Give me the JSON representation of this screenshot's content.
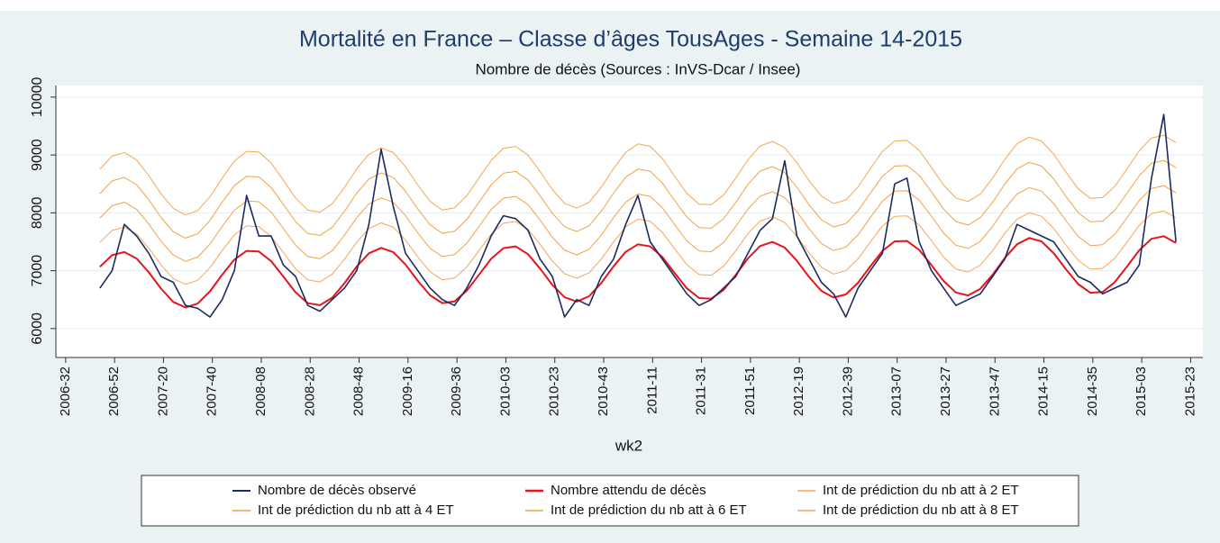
{
  "chart_data": {
    "type": "line",
    "title": "Mortalité en France – Classe d’âges  TousAges - Semaine 14-2015",
    "subtitle": "Nombre de décès (Sources : InVS-Dcar / Insee)",
    "x_label": "wk2",
    "grid": true,
    "legend": "bottom",
    "xlim": [
      -4,
      465
    ],
    "ylim": [
      5500,
      10200
    ],
    "yticks": [
      6000,
      7000,
      8000,
      9000,
      10000
    ],
    "xticks": [
      {
        "value": 0,
        "label": "2006-32"
      },
      {
        "value": 20,
        "label": "2006-52"
      },
      {
        "value": 40,
        "label": "2007-20"
      },
      {
        "value": 60,
        "label": "2007-40"
      },
      {
        "value": 80,
        "label": "2008-08"
      },
      {
        "value": 100,
        "label": "2008-28"
      },
      {
        "value": 120,
        "label": "2008-48"
      },
      {
        "value": 140,
        "label": "2009-16"
      },
      {
        "value": 160,
        "label": "2009-36"
      },
      {
        "value": 180,
        "label": "2010-03"
      },
      {
        "value": 200,
        "label": "2010-23"
      },
      {
        "value": 220,
        "label": "2010-43"
      },
      {
        "value": 240,
        "label": "2011-11"
      },
      {
        "value": 260,
        "label": "2011-31"
      },
      {
        "value": 280,
        "label": "2011-51"
      },
      {
        "value": 300,
        "label": "2012-19"
      },
      {
        "value": 320,
        "label": "2012-39"
      },
      {
        "value": 340,
        "label": "2013-07"
      },
      {
        "value": 360,
        "label": "2013-27"
      },
      {
        "value": 380,
        "label": "2013-47"
      },
      {
        "value": 400,
        "label": "2014-15"
      },
      {
        "value": 420,
        "label": "2014-35"
      },
      {
        "value": 440,
        "label": "2015-03"
      },
      {
        "value": 460,
        "label": "2015-23"
      }
    ],
    "x": [
      14,
      19,
      24,
      29,
      34,
      39,
      44,
      49,
      54,
      59,
      64,
      69,
      74,
      79,
      84,
      89,
      94,
      99,
      104,
      109,
      114,
      119,
      124,
      129,
      134,
      139,
      144,
      149,
      154,
      159,
      164,
      169,
      174,
      179,
      184,
      189,
      194,
      199,
      204,
      209,
      214,
      219,
      224,
      229,
      234,
      239,
      244,
      249,
      254,
      259,
      264,
      269,
      274,
      279,
      284,
      289,
      294,
      299,
      304,
      309,
      314,
      319,
      324,
      329,
      334,
      339,
      344,
      349,
      354,
      359,
      364,
      369,
      374,
      379,
      384,
      389,
      394,
      399,
      404,
      409,
      414,
      419,
      424,
      429,
      434,
      439,
      444,
      449,
      454
    ],
    "series": [
      {
        "name": "Nombre de décès observé",
        "color": "#1c2b5e",
        "width": 1.6,
        "values": [
          6700,
          7000,
          7800,
          7600,
          7300,
          6900,
          6800,
          6400,
          6350,
          6200,
          6500,
          7000,
          8300,
          7600,
          7600,
          7100,
          6900,
          6400,
          6300,
          6500,
          6700,
          7000,
          7800,
          9100,
          8100,
          7300,
          7000,
          6700,
          6500,
          6400,
          6700,
          7100,
          7600,
          7950,
          7900,
          7700,
          7200,
          6900,
          6200,
          6500,
          6400,
          6900,
          7200,
          7800,
          8300,
          7500,
          7200,
          6900,
          6600,
          6400,
          6500,
          6700,
          6900,
          7300,
          7700,
          7900,
          8900,
          7600,
          7200,
          6800,
          6600,
          6200,
          6700,
          7000,
          7300,
          8500,
          8600,
          7500,
          7000,
          6700,
          6400,
          6500,
          6600,
          6900,
          7200,
          7800,
          7700,
          7600,
          7500,
          7200,
          6900,
          6800,
          6600,
          6700,
          6800,
          7100,
          8600,
          9700,
          7500
        ]
      },
      {
        "name": "Nombre attendu de décès",
        "color": "#e8131b",
        "width": 2,
        "values": [
          7067,
          7268,
          7323,
          7210,
          6972,
          6690,
          6461,
          6363,
          6432,
          6644,
          6930,
          7192,
          7343,
          7332,
          7166,
          6900,
          6626,
          6439,
          6404,
          6533,
          6784,
          7072,
          7301,
          7394,
          7320,
          7106,
          6825,
          6575,
          6440,
          6469,
          6653,
          6929,
          7205,
          7389,
          7420,
          7286,
          7036,
          6755,
          6541,
          6466,
          6558,
          6786,
          7075,
          7326,
          7456,
          7421,
          7236,
          6962,
          6695,
          6527,
          6517,
          6667,
          6928,
          7214,
          7427,
          7497,
          7400,
          7171,
          6890,
          6651,
          6537,
          6590,
          6792,
          7074,
          7343,
          7507,
          7514,
          7360,
          7099,
          6822,
          6624,
          6572,
          6687,
          6928,
          7218,
          7457,
          7565,
          7506,
          7304,
          7025,
          6768,
          6619,
          6632,
          6802,
          7073,
          7354,
          7551,
          7597,
          7478
        ]
      },
      {
        "name": "Int de prédiction du nb att à 2 ET",
        "color": "#f5a55a",
        "width": 1,
        "values": [
          7489,
          7696,
          7753,
          7636,
          7390,
          7100,
          6865,
          6763,
          6834,
          7052,
          7348,
          7618,
          7773,
          7762,
          7590,
          7316,
          7034,
          6841,
          6806,
          6939,
          7198,
          7494,
          7729,
          7826,
          7750,
          7528,
          7239,
          6981,
          6842,
          6873,
          7063,
          7347,
          7631,
          7821,
          7852,
          7714,
          7456,
          7167,
          6947,
          6870,
          6964,
          7200,
          7497,
          7756,
          7890,
          7853,
          7662,
          7380,
          7105,
          6933,
          6923,
          7077,
          7346,
          7640,
          7859,
          7931,
          7832,
          7595,
          7306,
          7061,
          6943,
          6998,
          7206,
          7496,
          7773,
          7941,
          7948,
          7790,
          7521,
          7236,
          7032,
          6978,
          7097,
          7346,
          7644,
          7891,
          8001,
          7940,
          7732,
          7445,
          7180,
          7027,
          7040,
          7216,
          7495,
          7784,
          7987,
          8033,
          7912
        ]
      },
      {
        "name": "Int de prédiction du nb att à 4 ET",
        "color": "#f0a24a",
        "width": 1,
        "values": [
          7911,
          8124,
          8183,
          8062,
          7808,
          7510,
          7269,
          7163,
          7236,
          7460,
          7766,
          8044,
          8203,
          8192,
          8014,
          7732,
          7442,
          7243,
          7208,
          7345,
          7612,
          7916,
          8157,
          8258,
          8180,
          7950,
          7653,
          7387,
          7244,
          7277,
          7473,
          7765,
          8057,
          8253,
          8284,
          8142,
          7876,
          7579,
          7353,
          7274,
          7370,
          7614,
          7919,
          8186,
          8324,
          8285,
          8088,
          7798,
          7515,
          7339,
          7329,
          7487,
          7764,
          8066,
          8291,
          8365,
          8264,
          8019,
          7722,
          7471,
          7349,
          7406,
          7620,
          7918,
          8203,
          8375,
          8382,
          8220,
          7943,
          7650,
          7440,
          7384,
          7507,
          7764,
          8070,
          8325,
          8437,
          8374,
          8160,
          7865,
          7592,
          7435,
          7448,
          7630,
          7917,
          8214,
          8423,
          8469,
          8346
        ]
      },
      {
        "name": "Int de prédiction du nb att à 6 ET",
        "color": "#eea340",
        "width": 1,
        "values": [
          8333,
          8552,
          8613,
          8488,
          8226,
          7920,
          7673,
          7563,
          7638,
          7868,
          8184,
          8470,
          8633,
          8622,
          8438,
          8148,
          7850,
          7645,
          7610,
          7751,
          8026,
          8338,
          8585,
          8690,
          8610,
          8372,
          8067,
          7793,
          7646,
          7681,
          7883,
          8183,
          8483,
          8685,
          8716,
          8570,
          8296,
          7991,
          7759,
          7678,
          7776,
          8028,
          8341,
          8616,
          8758,
          8717,
          8514,
          8216,
          7925,
          7745,
          7735,
          7897,
          8182,
          8492,
          8723,
          8799,
          8696,
          8443,
          8138,
          7881,
          7755,
          7814,
          8034,
          8340,
          8633,
          8809,
          8816,
          8650,
          8365,
          8064,
          7848,
          7790,
          7917,
          8182,
          8496,
          8759,
          8873,
          8808,
          8588,
          8285,
          8004,
          7843,
          7856,
          8044,
          8339,
          8644,
          8859,
          8905,
          8780
        ]
      },
      {
        "name": "Int de prédiction du nb att à 8 ET",
        "color": "#f2a852",
        "width": 1,
        "values": [
          8755,
          8980,
          9043,
          8914,
          8644,
          8330,
          8077,
          7963,
          8040,
          8276,
          8602,
          8896,
          9063,
          9052,
          8862,
          8564,
          8258,
          8047,
          8012,
          8157,
          8440,
          8760,
          9013,
          9122,
          9040,
          8794,
          8481,
          8199,
          8048,
          8085,
          8293,
          8601,
          8909,
          9117,
          9148,
          8998,
          8716,
          8403,
          8165,
          8082,
          8182,
          8442,
          8763,
          9046,
          9192,
          9149,
          8940,
          8634,
          8335,
          8151,
          8141,
          8307,
          8600,
          8918,
          9155,
          9233,
          9128,
          8867,
          8554,
          8291,
          8161,
          8222,
          8448,
          8762,
          9063,
          9243,
          9250,
          9080,
          8787,
          8478,
          8256,
          8196,
          8327,
          8600,
          8922,
          9193,
          9309,
          9242,
          9016,
          8705,
          8416,
          8251,
          8264,
          8458,
          8761,
          9074,
          9295,
          9341,
          9214
        ]
      }
    ]
  }
}
